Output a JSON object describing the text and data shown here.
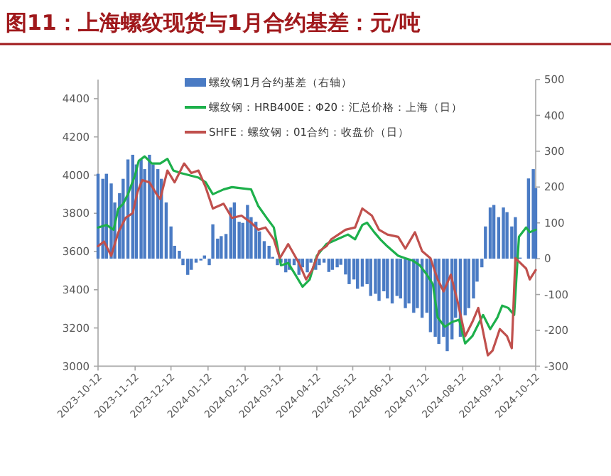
{
  "chart_data": {
    "type": "bar",
    "title": "图11：上海螺纹现货与1月合约基差：元/吨",
    "xlim": [
      "2023-10-12",
      "2024-10-12"
    ],
    "xticks": [
      "2023-10-12",
      "2023-11-12",
      "2023-12-12",
      "2024-01-12",
      "2024-02-12",
      "2024-03-12",
      "2024-04-12",
      "2024-05-12",
      "2024-06-12",
      "2024-07-12",
      "2024-08-12",
      "2024-09-12",
      "2024-10-12"
    ],
    "ylim": [
      3000,
      4500
    ],
    "yticks": [
      3000,
      3200,
      3400,
      3600,
      3800,
      4000,
      4200,
      4400
    ],
    "y2lim": [
      -300,
      500
    ],
    "y2ticks": [
      -300,
      -200,
      -100,
      0,
      100,
      200,
      300,
      400,
      500
    ],
    "legend": "top",
    "grid": false,
    "series": [
      {
        "axis": "y2",
        "name": "螺纹钢1月合约基差（右轴）",
        "color": "#4a7bc4",
        "x": [
          "2023-10-12",
          "2023-10-16",
          "2023-10-19",
          "2023-10-23",
          "2023-10-26",
          "2023-10-30",
          "2023-11-02",
          "2023-11-06",
          "2023-11-10",
          "2023-11-13",
          "2023-11-17",
          "2023-11-20",
          "2023-11-24",
          "2023-11-27",
          "2023-12-01",
          "2023-12-04",
          "2023-12-08",
          "2023-12-12",
          "2023-12-15",
          "2023-12-19",
          "2023-12-22",
          "2023-12-26",
          "2023-12-29",
          "2024-01-02",
          "2024-01-06",
          "2024-01-09",
          "2024-01-13",
          "2024-01-16",
          "2024-01-20",
          "2024-01-23",
          "2024-01-27",
          "2024-01-31",
          "2024-02-03",
          "2024-02-07",
          "2024-02-10",
          "2024-02-14",
          "2024-02-17",
          "2024-02-21",
          "2024-02-24",
          "2024-02-28",
          "2024-03-03",
          "2024-03-06",
          "2024-03-10",
          "2024-03-13",
          "2024-03-17",
          "2024-03-20",
          "2024-03-24",
          "2024-03-28",
          "2024-03-31",
          "2024-04-04",
          "2024-04-07",
          "2024-04-11",
          "2024-04-14",
          "2024-04-18",
          "2024-04-22",
          "2024-04-25",
          "2024-04-29",
          "2024-05-02",
          "2024-05-06",
          "2024-05-09",
          "2024-05-13",
          "2024-05-16",
          "2024-05-20",
          "2024-05-24",
          "2024-05-27",
          "2024-05-31",
          "2024-06-03",
          "2024-06-07",
          "2024-06-10",
          "2024-06-14",
          "2024-06-18",
          "2024-06-21",
          "2024-06-25",
          "2024-06-28",
          "2024-07-02",
          "2024-07-05",
          "2024-07-09",
          "2024-07-13",
          "2024-07-16",
          "2024-07-20",
          "2024-07-23",
          "2024-07-27",
          "2024-07-30",
          "2024-08-03",
          "2024-08-06",
          "2024-08-10",
          "2024-08-14",
          "2024-08-17",
          "2024-08-21",
          "2024-08-24",
          "2024-08-28",
          "2024-08-31",
          "2024-09-04",
          "2024-09-07",
          "2024-09-11",
          "2024-09-15",
          "2024-09-18",
          "2024-09-22",
          "2024-09-25",
          "2024-09-29",
          "2024-10-06",
          "2024-10-10",
          "2024-10-12"
        ],
        "values": [
          237,
          223,
          237,
          210,
          157,
          183,
          223,
          277,
          290,
          263,
          277,
          250,
          290,
          263,
          250,
          223,
          157,
          90,
          36,
          22,
          -18,
          -45,
          -31,
          -11,
          -5,
          9,
          -18,
          96,
          56,
          63,
          69,
          143,
          157,
          103,
          100,
          150,
          116,
          103,
          76,
          49,
          36,
          5,
          -18,
          -11,
          -38,
          -31,
          -18,
          -45,
          -24,
          -38,
          -11,
          -31,
          -18,
          -11,
          -37,
          -31,
          -24,
          -17,
          -44,
          -71,
          -58,
          -84,
          -78,
          -71,
          -104,
          -98,
          -118,
          -91,
          -111,
          -125,
          -104,
          -111,
          -138,
          -125,
          -151,
          -138,
          -165,
          -151,
          -205,
          -218,
          -238,
          -218,
          -258,
          -225,
          -165,
          -218,
          -158,
          -138,
          -111,
          -64,
          -24,
          90,
          143,
          150,
          116,
          143,
          130,
          90,
          116,
          3,
          224,
          250,
          197
        ]
      },
      {
        "type": "line",
        "name": "螺纹钢：HRB400E：Φ20：汇总价格：上海（日）",
        "color": "#1db04b",
        "x": [
          "2023-10-12",
          "2023-10-19",
          "2023-10-25",
          "2023-10-29",
          "2023-11-02",
          "2023-11-06",
          "2023-11-12",
          "2023-11-15",
          "2023-11-20",
          "2023-11-26",
          "2023-12-03",
          "2023-12-09",
          "2023-12-14",
          "2023-12-20",
          "2023-12-27",
          "2024-01-04",
          "2024-01-10",
          "2024-01-16",
          "2024-01-25",
          "2024-02-01",
          "2024-02-17",
          "2024-02-23",
          "2024-03-01",
          "2024-03-07",
          "2024-03-13",
          "2024-03-19",
          "2024-03-25",
          "2024-03-31",
          "2024-04-06",
          "2024-04-12",
          "2024-04-20",
          "2024-04-29",
          "2024-05-08",
          "2024-05-14",
          "2024-05-20",
          "2024-05-24",
          "2024-05-30",
          "2024-06-04",
          "2024-06-10",
          "2024-06-19",
          "2024-06-25",
          "2024-07-01",
          "2024-07-07",
          "2024-07-13",
          "2024-07-18",
          "2024-07-22",
          "2024-07-28",
          "2024-08-03",
          "2024-08-09",
          "2024-08-14",
          "2024-08-20",
          "2024-08-25",
          "2024-08-29",
          "2024-09-04",
          "2024-09-10",
          "2024-09-14",
          "2024-09-19",
          "2024-09-24",
          "2024-09-28",
          "2024-10-04",
          "2024-10-07",
          "2024-10-12"
        ],
        "values": [
          3726,
          3739,
          3714,
          3825,
          3850,
          3900,
          4000,
          4074,
          4098,
          4061,
          4061,
          4085,
          4024,
          4011,
          4000,
          3987,
          3962,
          3900,
          3925,
          3937,
          3925,
          3838,
          3776,
          3726,
          3528,
          3540,
          3479,
          3416,
          3454,
          3578,
          3639,
          3664,
          3689,
          3664,
          3739,
          3751,
          3701,
          3664,
          3627,
          3578,
          3565,
          3553,
          3528,
          3479,
          3429,
          3255,
          3206,
          3231,
          3243,
          3119,
          3157,
          3219,
          3268,
          3194,
          3255,
          3317,
          3305,
          3268,
          3677,
          3726,
          3701,
          3714
        ]
      },
      {
        "type": "line",
        "name": "SHFE：螺纹钢：01合约：收盘价（日）",
        "color": "#c0504d",
        "x": [
          "2023-10-12",
          "2023-10-17",
          "2023-10-23",
          "2023-10-29",
          "2023-11-04",
          "2023-11-10",
          "2023-11-14",
          "2023-11-18",
          "2023-11-24",
          "2023-11-30",
          "2023-12-03",
          "2023-12-09",
          "2023-12-15",
          "2023-12-23",
          "2023-12-29",
          "2024-01-04",
          "2024-01-10",
          "2024-01-16",
          "2024-01-25",
          "2024-02-01",
          "2024-02-09",
          "2024-02-17",
          "2024-02-23",
          "2024-02-29",
          "2024-03-07",
          "2024-03-12",
          "2024-03-19",
          "2024-03-28",
          "2024-04-03",
          "2024-04-08",
          "2024-04-14",
          "2024-04-20",
          "2024-04-24",
          "2024-05-06",
          "2024-05-14",
          "2024-05-20",
          "2024-05-28",
          "2024-06-03",
          "2024-06-10",
          "2024-06-19",
          "2024-06-25",
          "2024-07-03",
          "2024-07-09",
          "2024-07-16",
          "2024-07-22",
          "2024-07-27",
          "2024-08-02",
          "2024-08-08",
          "2024-08-14",
          "2024-08-20",
          "2024-08-25",
          "2024-08-29",
          "2024-09-02",
          "2024-09-06",
          "2024-09-12",
          "2024-09-18",
          "2024-09-22",
          "2024-09-25",
          "2024-10-04",
          "2024-10-07",
          "2024-10-12"
        ],
        "values": [
          3628,
          3652,
          3578,
          3701,
          3776,
          3801,
          3912,
          3974,
          3962,
          3900,
          3875,
          4024,
          3962,
          4061,
          4011,
          4024,
          3937,
          3825,
          3850,
          3776,
          3788,
          3751,
          3714,
          3726,
          3664,
          3565,
          3639,
          3540,
          3454,
          3503,
          3602,
          3628,
          3664,
          3714,
          3726,
          3825,
          3788,
          3714,
          3689,
          3677,
          3615,
          3701,
          3602,
          3565,
          3454,
          3392,
          3479,
          3330,
          3157,
          3231,
          3305,
          3181,
          3057,
          3082,
          3194,
          3157,
          3094,
          3565,
          3511,
          3454,
          3503
        ]
      }
    ]
  }
}
